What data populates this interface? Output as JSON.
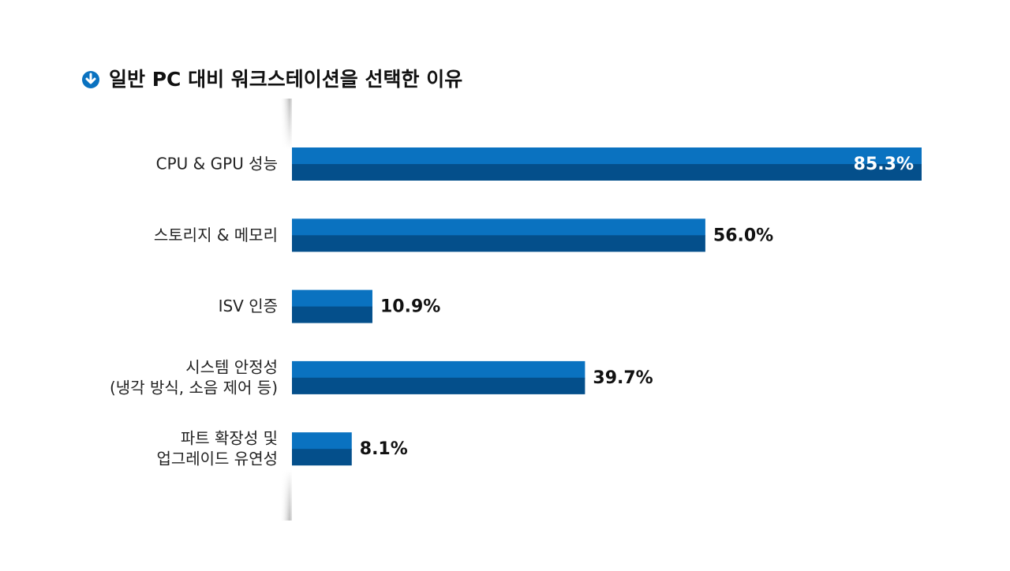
{
  "chart_data": {
    "type": "barh",
    "title": "일반 PC 대비 워크스테이션을 선택한 이유",
    "categories": [
      [
        "CPU & GPU 성능"
      ],
      [
        "스토리지 & 메모리"
      ],
      [
        "ISV 인증"
      ],
      [
        "시스템 안정성",
        "(냉각 방식, 소음 제어 등)"
      ],
      [
        "파트 확장성 및",
        "업그레이드 유연성"
      ]
    ],
    "values": [
      85.3,
      56.0,
      10.9,
      39.7,
      8.1
    ],
    "value_labels": [
      "85.3%",
      "56.0%",
      "10.9%",
      "39.7%",
      "8.1%"
    ],
    "color": "#0a72c0",
    "shade_color": "#044f8b"
  }
}
